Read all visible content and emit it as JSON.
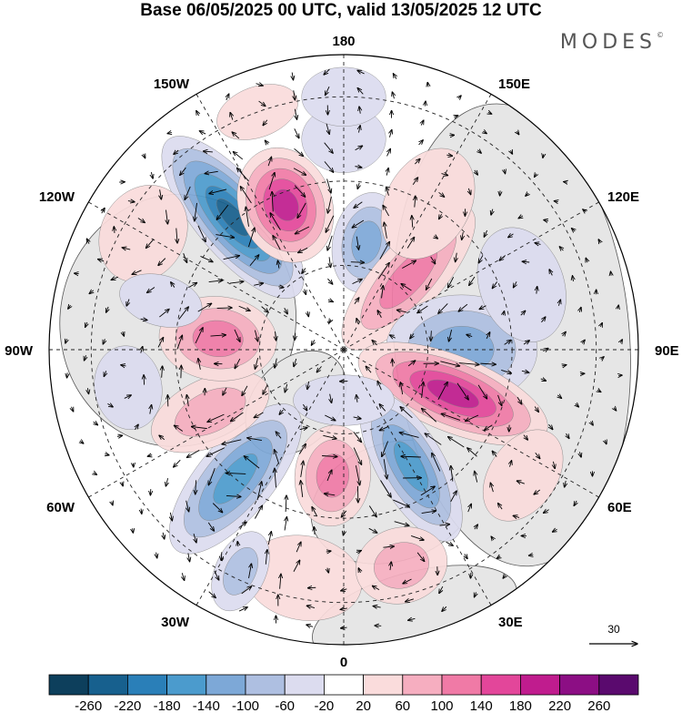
{
  "title": "Base 06/05/2025 00 UTC, valid 13/05/2025 12 UTC",
  "logo": "MODES",
  "logo_mark": "©",
  "longitude_labels": {
    "top": "180",
    "bottom": "0",
    "left": "90W",
    "right": "90E",
    "upper_left_1": "150W",
    "upper_left_2": "120W",
    "upper_right_1": "150E",
    "upper_right_2": "120E",
    "lower_left_1": "60W",
    "lower_left_2": "30W",
    "lower_right_1": "60E",
    "lower_right_2": "30E"
  },
  "reference_vector": {
    "label": "30"
  },
  "colorbar": {
    "ticks": [
      "-260",
      "-220",
      "-180",
      "-140",
      "-100",
      "-60",
      "-20",
      "20",
      "60",
      "100",
      "140",
      "180",
      "220",
      "260"
    ],
    "colors": [
      "#0d3f5c",
      "#17608e",
      "#2a7fb8",
      "#4b9bcd",
      "#7da8d7",
      "#aebfe1",
      "#dcdcef",
      "#ffffff",
      "#fadcdc",
      "#f6aec0",
      "#f07aa6",
      "#e3469a",
      "#c01c8e",
      "#8c0e84",
      "#5a0a6e"
    ]
  },
  "colors": {
    "land": "#e6e6e6",
    "grid": "#222222"
  },
  "anomalies": [
    {
      "lon": -140,
      "lat": 49,
      "rx": 9,
      "ry": 24,
      "value": -240
    },
    {
      "lon": -158,
      "lat": 53,
      "rx": 11,
      "ry": 14,
      "value": 200
    },
    {
      "lon": 168,
      "lat": 64,
      "rx": 8,
      "ry": 12,
      "value": -140
    },
    {
      "lon": 138,
      "lat": 67,
      "rx": 8,
      "ry": 22,
      "value": 120
    },
    {
      "lon": 90,
      "lat": 62,
      "rx": 13,
      "ry": 18,
      "value": -130
    },
    {
      "lon": 68,
      "lat": 62,
      "rx": 9,
      "ry": 24,
      "value": 210
    },
    {
      "lon": 30,
      "lat": 58,
      "rx": 8,
      "ry": 20,
      "value": -190
    },
    {
      "lon": -5,
      "lat": 60,
      "rx": 9,
      "ry": 12,
      "value": 130
    },
    {
      "lon": -40,
      "lat": 50,
      "rx": 9,
      "ry": 22,
      "value": -180
    },
    {
      "lon": -65,
      "lat": 55,
      "rx": 8,
      "ry": 15,
      "value": 90
    },
    {
      "lon": -95,
      "lat": 60,
      "rx": 10,
      "ry": 14,
      "value": 120
    },
    {
      "lon": -10,
      "lat": 35,
      "rx": 14,
      "ry": 10,
      "value": 70
    },
    {
      "lon": 15,
      "lat": 37,
      "rx": 11,
      "ry": 9,
      "value": 80
    },
    {
      "lon": -25,
      "lat": 32,
      "rx": 6,
      "ry": 10,
      "value": -90
    },
    {
      "lon": 110,
      "lat": 45,
      "rx": 14,
      "ry": 10,
      "value": -40
    },
    {
      "lon": -120,
      "lat": 35,
      "rx": 12,
      "ry": 10,
      "value": 60
    },
    {
      "lon": -105,
      "lat": 45,
      "rx": 6,
      "ry": 10,
      "value": -70
    },
    {
      "lon": 150,
      "lat": 50,
      "rx": 10,
      "ry": 14,
      "value": 50
    },
    {
      "lon": -180,
      "lat": 40,
      "rx": 10,
      "ry": 8,
      "value": -50
    },
    {
      "lon": 55,
      "lat": 38,
      "rx": 12,
      "ry": 8,
      "value": 50
    },
    {
      "lon": -80,
      "lat": 38,
      "rx": 10,
      "ry": 8,
      "value": -40
    },
    {
      "lon": 0,
      "lat": 78,
      "rx": 12,
      "ry": 6,
      "value": -60
    },
    {
      "lon": 180,
      "lat": 30,
      "rx": 10,
      "ry": 7,
      "value": -40
    },
    {
      "lon": -160,
      "lat": 30,
      "rx": 10,
      "ry": 6,
      "value": 50
    }
  ],
  "land_masses": [
    {
      "name": "north-america",
      "lon": -100,
      "lat": 50,
      "rx": 30,
      "ry": 28
    },
    {
      "name": "greenland",
      "lon": -42,
      "lat": 73,
      "rx": 10,
      "ry": 14
    },
    {
      "name": "europe",
      "lon": 18,
      "lat": 52,
      "rx": 20,
      "ry": 14
    },
    {
      "name": "africa",
      "lon": 15,
      "lat": 25,
      "rx": 25,
      "ry": 10
    },
    {
      "name": "asia",
      "lon": 95,
      "lat": 50,
      "rx": 55,
      "ry": 28
    }
  ]
}
